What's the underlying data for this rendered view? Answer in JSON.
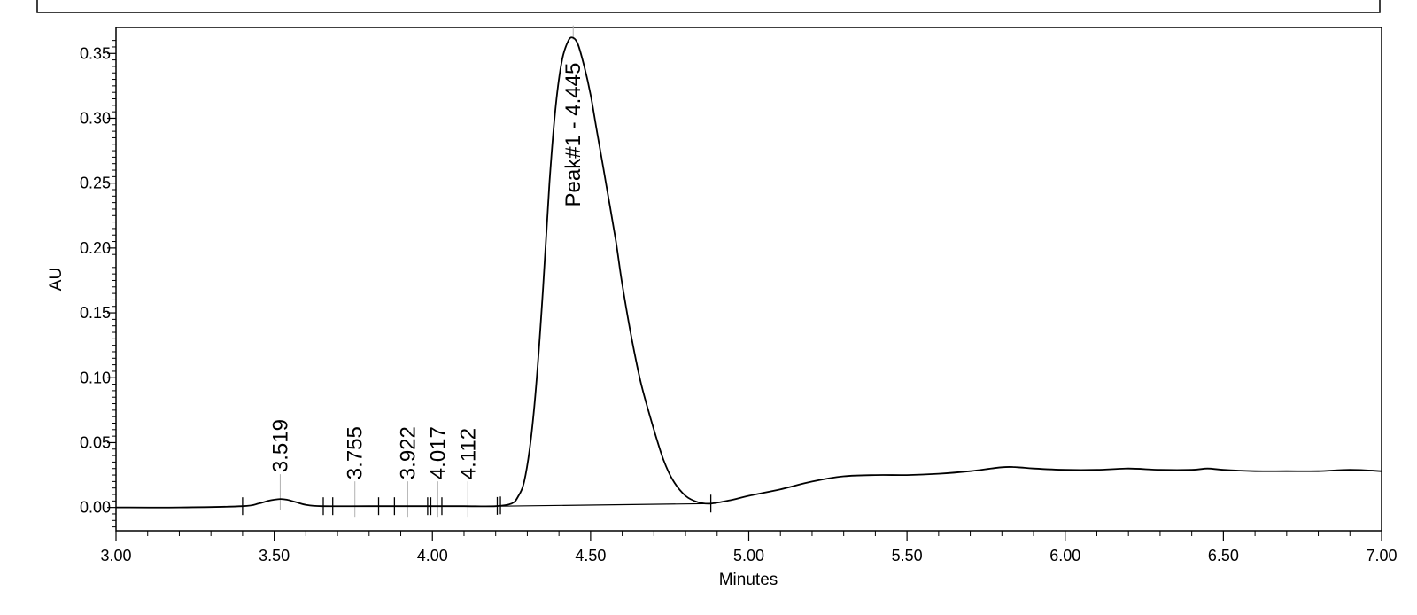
{
  "chart_data": {
    "type": "line",
    "title": "",
    "xlabel": "Minutes",
    "ylabel": "AU",
    "xlim": [
      3.0,
      7.0
    ],
    "ylim": [
      -0.018,
      0.37
    ],
    "x_ticks": [
      3.0,
      3.5,
      4.0,
      4.5,
      5.0,
      5.5,
      6.0,
      6.5,
      7.0
    ],
    "x_tick_labels": [
      "3.00",
      "3.50",
      "4.00",
      "4.50",
      "5.00",
      "5.50",
      "6.00",
      "6.50",
      "7.00"
    ],
    "y_ticks": [
      0.0,
      0.05,
      0.1,
      0.15,
      0.2,
      0.25,
      0.3,
      0.35
    ],
    "y_tick_labels": [
      "0.00",
      "0.05",
      "0.10",
      "0.15",
      "0.20",
      "0.25",
      "0.30",
      "0.35"
    ],
    "grid": false,
    "series": [
      {
        "x": [
          3.0,
          3.2,
          3.4,
          3.45,
          3.48,
          3.5,
          3.52,
          3.54,
          3.57,
          3.6,
          3.65,
          3.8,
          4.0,
          4.1,
          4.2,
          4.25,
          4.27,
          4.29,
          4.31,
          4.33,
          4.35,
          4.37,
          4.39,
          4.41,
          4.43,
          4.445,
          4.46,
          4.48,
          4.5,
          4.52,
          4.55,
          4.58,
          4.6,
          4.63,
          4.66,
          4.7,
          4.73,
          4.76,
          4.8,
          4.84,
          4.88,
          4.95,
          5.0,
          5.1,
          5.2,
          5.3,
          5.4,
          5.5,
          5.6,
          5.7,
          5.8,
          5.85,
          5.9,
          6.0,
          6.1,
          6.2,
          6.3,
          6.4,
          6.45,
          6.5,
          6.6,
          6.7,
          6.8,
          6.9,
          7.0
        ],
        "y": [
          0.0,
          0.0,
          0.001,
          0.003,
          0.005,
          0.006,
          0.0065,
          0.006,
          0.004,
          0.002,
          0.001,
          0.001,
          0.001,
          0.001,
          0.001,
          0.003,
          0.008,
          0.02,
          0.05,
          0.1,
          0.17,
          0.25,
          0.31,
          0.345,
          0.36,
          0.362,
          0.357,
          0.34,
          0.318,
          0.29,
          0.248,
          0.205,
          0.172,
          0.13,
          0.095,
          0.06,
          0.037,
          0.021,
          0.009,
          0.004,
          0.003,
          0.006,
          0.009,
          0.014,
          0.02,
          0.024,
          0.025,
          0.025,
          0.026,
          0.028,
          0.031,
          0.031,
          0.03,
          0.029,
          0.029,
          0.03,
          0.029,
          0.029,
          0.03,
          0.029,
          0.028,
          0.028,
          0.028,
          0.029,
          0.028
        ]
      }
    ],
    "baseline": {
      "x": [
        4.215,
        4.88
      ],
      "y": [
        0.001,
        0.003
      ]
    },
    "peak_labels": [
      {
        "label": "3.519",
        "x": 3.519,
        "y": 0.0065
      },
      {
        "label": "3.755",
        "x": 3.755,
        "y": 0.001
      },
      {
        "label": "3.922",
        "x": 3.922,
        "y": 0.001
      },
      {
        "label": "4.017",
        "x": 4.017,
        "y": 0.001
      },
      {
        "label": "4.112",
        "x": 4.112,
        "y": 0.001
      },
      {
        "label": "Peak#1 - 4.445",
        "x": 4.445,
        "y": 0.362
      }
    ],
    "integration_markers": [
      3.4,
      3.655,
      3.685,
      3.83,
      3.88,
      3.985,
      3.995,
      4.03,
      4.205,
      4.215,
      4.88
    ],
    "peak_apex_lines": [
      3.519,
      3.755,
      3.922,
      4.017,
      4.112,
      4.445
    ],
    "colors": {
      "trace": "#000000",
      "peak_line": "#b0b0b0"
    }
  }
}
